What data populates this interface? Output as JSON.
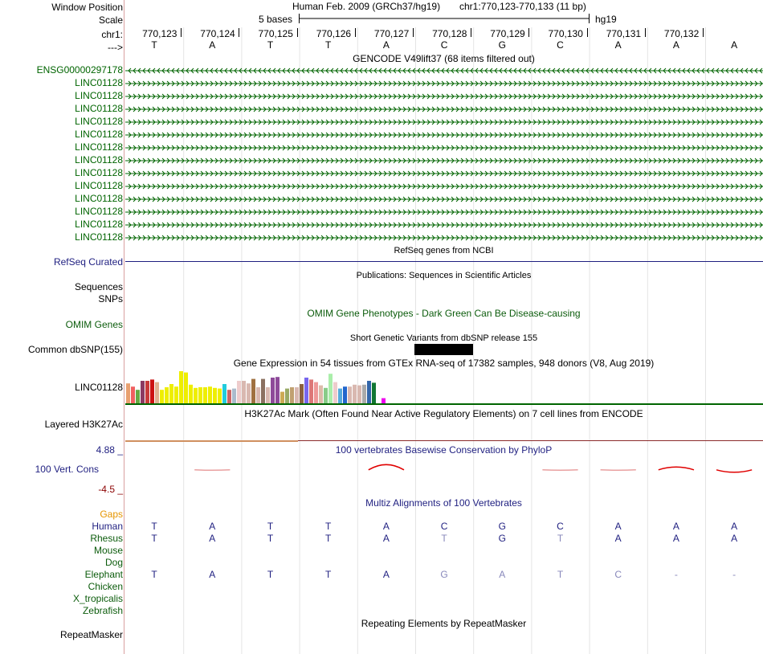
{
  "header": {
    "window_position_label": "Window Position",
    "scale_label": "Scale",
    "chr_label": "chr1:",
    "strand_label": "--->",
    "assembly_text": "Human Feb. 2009 (GRCh37/hg19)",
    "position_text": "chr1:770,123-770,133 (11 bp)",
    "scale_text": "5 bases",
    "db_text": "hg19"
  },
  "ruler": {
    "positions": [
      "770,123",
      "770,124",
      "770,125",
      "770,126",
      "770,127",
      "770,128",
      "770,129",
      "770,130",
      "770,131",
      "770,132"
    ],
    "bases": [
      "T",
      "A",
      "T",
      "T",
      "A",
      "C",
      "G",
      "C",
      "A",
      "A",
      "A"
    ]
  },
  "gencode": {
    "title": "GENCODE V49lift37 (68 items filtered out)",
    "genes": [
      {
        "name": "ENSG00000297178",
        "strand": "-"
      },
      {
        "name": "LINC01128",
        "strand": "+"
      },
      {
        "name": "LINC01128",
        "strand": "+"
      },
      {
        "name": "LINC01128",
        "strand": "+"
      },
      {
        "name": "LINC01128",
        "strand": "+"
      },
      {
        "name": "LINC01128",
        "strand": "+"
      },
      {
        "name": "LINC01128",
        "strand": "+"
      },
      {
        "name": "LINC01128",
        "strand": "+"
      },
      {
        "name": "LINC01128",
        "strand": "+"
      },
      {
        "name": "LINC01128",
        "strand": "+"
      },
      {
        "name": "LINC01128",
        "strand": "+"
      },
      {
        "name": "LINC01128",
        "strand": "+"
      },
      {
        "name": "LINC01128",
        "strand": "+"
      },
      {
        "name": "LINC01128",
        "strand": "+"
      }
    ]
  },
  "refseq": {
    "title": "RefSeq genes from NCBI",
    "label": "RefSeq Curated"
  },
  "publications": {
    "title": "Publications: Sequences in Scientific Articles",
    "label1": "Sequences",
    "label2": "SNPs"
  },
  "omim": {
    "title": "OMIM Gene Phenotypes - Dark Green Can Be Disease-causing",
    "label": "OMIM Genes"
  },
  "dbsnp": {
    "title": "Short Genetic Variants from dbSNP release 155",
    "label": "Common dbSNP(155)"
  },
  "gtex": {
    "title": "Gene Expression in 54 tissues from GTEx RNA-seq of 17382 samples, 948 donors (V8, Aug 2019)",
    "label": "LINC01128",
    "bars": [
      {
        "v": 0.62,
        "c": "#e8a070"
      },
      {
        "v": 0.52,
        "c": "#f06060"
      },
      {
        "v": 0.42,
        "c": "#66aa44"
      },
      {
        "v": 0.7,
        "c": "#8b3a62"
      },
      {
        "v": 0.7,
        "c": "#c83a3a"
      },
      {
        "v": 0.74,
        "c": "#cc1111"
      },
      {
        "v": 0.66,
        "c": "#e0b090"
      },
      {
        "v": 0.42,
        "c": "#eeee00"
      },
      {
        "v": 0.5,
        "c": "#eeee00"
      },
      {
        "v": 0.6,
        "c": "#eeee00"
      },
      {
        "v": 0.52,
        "c": "#eeee00"
      },
      {
        "v": 1.0,
        "c": "#eeee00"
      },
      {
        "v": 0.96,
        "c": "#eeee00"
      },
      {
        "v": 0.58,
        "c": "#eeee00"
      },
      {
        "v": 0.48,
        "c": "#eeee00"
      },
      {
        "v": 0.5,
        "c": "#eeee00"
      },
      {
        "v": 0.5,
        "c": "#eeee00"
      },
      {
        "v": 0.52,
        "c": "#eeee00"
      },
      {
        "v": 0.48,
        "c": "#eeee00"
      },
      {
        "v": 0.46,
        "c": "#eeee00"
      },
      {
        "v": 0.6,
        "c": "#22ccdd"
      },
      {
        "v": 0.42,
        "c": "#cc6666"
      },
      {
        "v": 0.46,
        "c": "#aabbcc"
      },
      {
        "v": 0.7,
        "c": "#eecccc"
      },
      {
        "v": 0.7,
        "c": "#d9b8b0"
      },
      {
        "v": 0.62,
        "c": "#d9b8b0"
      },
      {
        "v": 0.76,
        "c": "#a07040"
      },
      {
        "v": 0.5,
        "c": "#d9b8b0"
      },
      {
        "v": 0.76,
        "c": "#8b7060"
      },
      {
        "v": 0.5,
        "c": "#d9b8b0"
      },
      {
        "v": 0.8,
        "c": "#8e4a9a"
      },
      {
        "v": 0.82,
        "c": "#8e4a9a"
      },
      {
        "v": 0.36,
        "c": "#ccaa55"
      },
      {
        "v": 0.46,
        "c": "#99aa66"
      },
      {
        "v": 0.5,
        "c": "#c0a070"
      },
      {
        "v": 0.5,
        "c": "#d9b8b0"
      },
      {
        "v": 0.6,
        "c": "#8b6040"
      },
      {
        "v": 0.8,
        "c": "#7766ee"
      },
      {
        "v": 0.74,
        "c": "#dd7777"
      },
      {
        "v": 0.66,
        "c": "#ee9999"
      },
      {
        "v": 0.56,
        "c": "#ddbbaa"
      },
      {
        "v": 0.48,
        "c": "#88cc88"
      },
      {
        "v": 0.92,
        "c": "#aaeeaa"
      },
      {
        "v": 0.66,
        "c": "#eecccc"
      },
      {
        "v": 0.46,
        "c": "#55aadd"
      },
      {
        "v": 0.52,
        "c": "#2266cc"
      },
      {
        "v": 0.52,
        "c": "#d9b8b0"
      },
      {
        "v": 0.58,
        "c": "#d9b8b0"
      },
      {
        "v": 0.56,
        "c": "#d9b8b0"
      },
      {
        "v": 0.58,
        "c": "#aaaaaa"
      },
      {
        "v": 0.7,
        "c": "#3366aa"
      },
      {
        "v": 0.64,
        "c": "#117733"
      },
      {
        "v": 0.6,
        "c": "#ffffff"
      },
      {
        "v": 0.16,
        "c": "#ee00ee"
      }
    ]
  },
  "h3k27ac": {
    "title": "H3K27Ac Mark (Often Found Near Active Regulatory Elements) on 7 cell lines from ENCODE",
    "label": "Layered H3K27Ac"
  },
  "phylop": {
    "title": "100 vertebrates Basewise Conservation by PhyloP",
    "label": "100 Vert. Cons",
    "max_label": "4.88 _",
    "min_label": "-4.5 _",
    "max": 4.88,
    "min": -4.5,
    "scores": [
      0.0,
      -0.1,
      0.0,
      0.0,
      1.3,
      0.0,
      0.0,
      -0.1,
      -0.1,
      0.7,
      -0.6
    ]
  },
  "multiz": {
    "title": "Multiz Alignments of 100 Vertebrates",
    "gaps_label": "Gaps",
    "species": [
      {
        "name": "Human",
        "bases": [
          "T",
          "A",
          "T",
          "T",
          "A",
          "C",
          "G",
          "C",
          "A",
          "A",
          "A"
        ],
        "dim": [
          false,
          false,
          false,
          false,
          false,
          false,
          false,
          false,
          false,
          false,
          false
        ]
      },
      {
        "name": "Rhesus",
        "bases": [
          "T",
          "A",
          "T",
          "T",
          "A",
          "T",
          "G",
          "T",
          "A",
          "A",
          "A"
        ],
        "dim": [
          false,
          false,
          false,
          false,
          false,
          true,
          false,
          true,
          false,
          false,
          false
        ]
      },
      {
        "name": "Mouse",
        "bases": [],
        "dim": []
      },
      {
        "name": "Dog",
        "bases": [],
        "dim": []
      },
      {
        "name": "Elephant",
        "bases": [
          "T",
          "A",
          "T",
          "T",
          "A",
          "G",
          "A",
          "T",
          "C",
          "-",
          "-"
        ],
        "dim": [
          false,
          false,
          false,
          false,
          false,
          true,
          true,
          true,
          true,
          true,
          true
        ]
      },
      {
        "name": "Chicken",
        "bases": [],
        "dim": []
      },
      {
        "name": "X_tropicalis",
        "bases": [],
        "dim": []
      },
      {
        "name": "Zebrafish",
        "bases": [],
        "dim": []
      }
    ]
  },
  "repeatmasker": {
    "title": "Repeating Elements by RepeatMasker",
    "label": "RepeatMasker"
  },
  "colors": {
    "gene_green": "#006400",
    "refseq_navy": "#1f1f80",
    "phylop_red": "#e00000",
    "gaps_orange": "#e69500",
    "separator": "#d9a0a0"
  }
}
